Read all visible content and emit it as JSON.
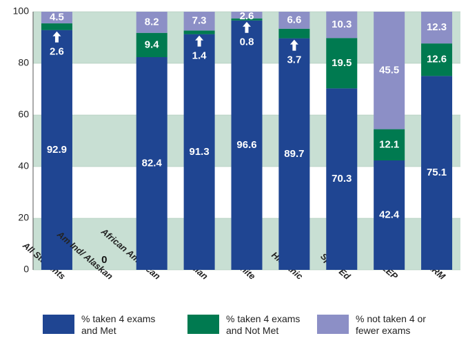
{
  "chart_data": {
    "type": "stacked_bar",
    "categories": [
      "All Students",
      "Am Ind/ Alaskan",
      "African American",
      "Asian",
      "White",
      "Hispanic",
      "Spec Ed",
      "LEP",
      "FARM"
    ],
    "series": [
      {
        "name": "% taken 4 exams and Met",
        "color": "#1f4592",
        "values": [
          92.9,
          0,
          82.4,
          91.3,
          96.6,
          89.7,
          70.3,
          42.4,
          75.1
        ]
      },
      {
        "name": "% taken 4 exams and Not Met",
        "color": "#007a50",
        "values": [
          2.6,
          null,
          9.4,
          1.4,
          0.8,
          3.7,
          19.5,
          12.1,
          12.6
        ]
      },
      {
        "name": "% not taken 4 or fewer exams",
        "color": "#8c8fc6",
        "values": [
          4.5,
          null,
          8.2,
          7.3,
          2.6,
          6.6,
          10.3,
          45.5,
          12.3
        ]
      }
    ],
    "ylim": [
      0,
      100
    ],
    "yticks": [
      0,
      20,
      40,
      60,
      80,
      100
    ],
    "grid": true
  }
}
